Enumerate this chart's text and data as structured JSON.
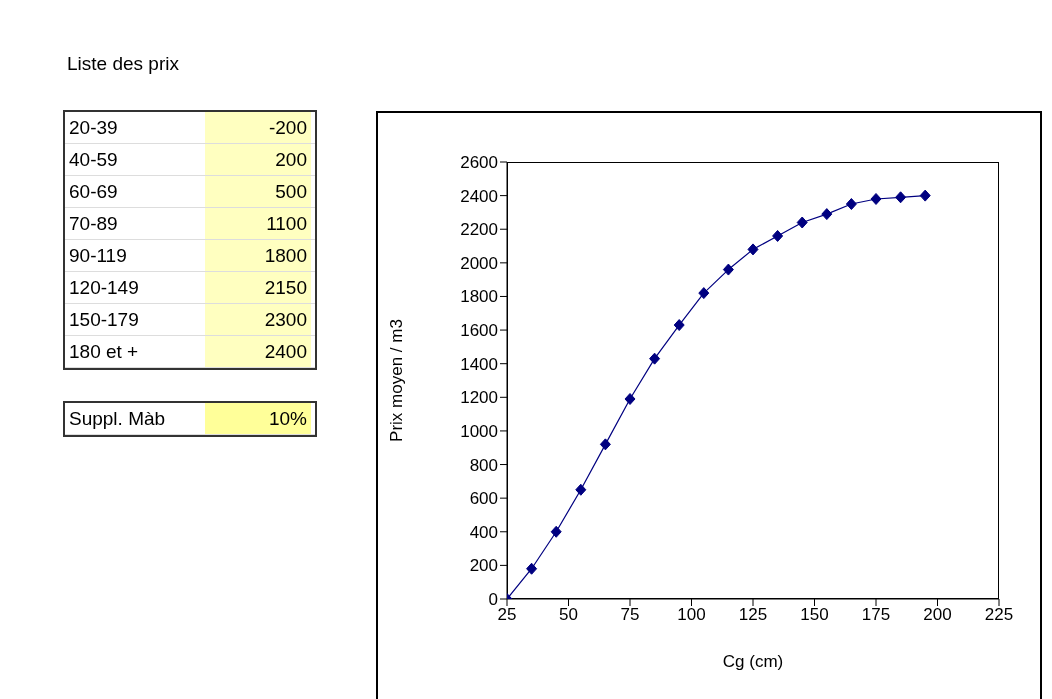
{
  "chart_data": [
    {
      "type": "other",
      "annotations": [
        "Liste des prix",
        "20-39",
        "-200",
        "40-59",
        "200",
        "60-69",
        "500",
        "70-89",
        "1100",
        "90-119",
        "1800",
        "120-149",
        "2150",
        "150-179",
        "2300",
        "180 et +",
        "2400",
        "Suppl. Màb",
        "10%"
      ]
    },
    {
      "type": "line",
      "xlabel": "Cg (cm)",
      "ylabel": "Prix moyen / m3",
      "marker": "diamond",
      "line_style": "solid",
      "grid": false,
      "legend": false,
      "x": [
        25,
        35,
        45,
        55,
        65,
        75,
        85,
        95,
        105,
        115,
        125,
        135,
        145,
        155,
        165,
        175,
        185,
        195
      ],
      "series": [
        {
          "color": "#000080",
          "values": [
            0,
            180,
            400,
            650,
            920,
            1190,
            1430,
            1630,
            1820,
            1960,
            2080,
            2160,
            2240,
            2290,
            2350,
            2380,
            2390,
            2400
          ]
        }
      ],
      "xlim": [
        25,
        225
      ],
      "xticks": [
        25,
        50,
        75,
        100,
        125,
        150,
        175,
        200,
        225
      ],
      "ylim": [
        0,
        2600
      ],
      "yticks": [
        0,
        200,
        400,
        600,
        800,
        1000,
        1200,
        1400,
        1600,
        1800,
        2000,
        2200,
        2400,
        2600
      ]
    }
  ]
}
